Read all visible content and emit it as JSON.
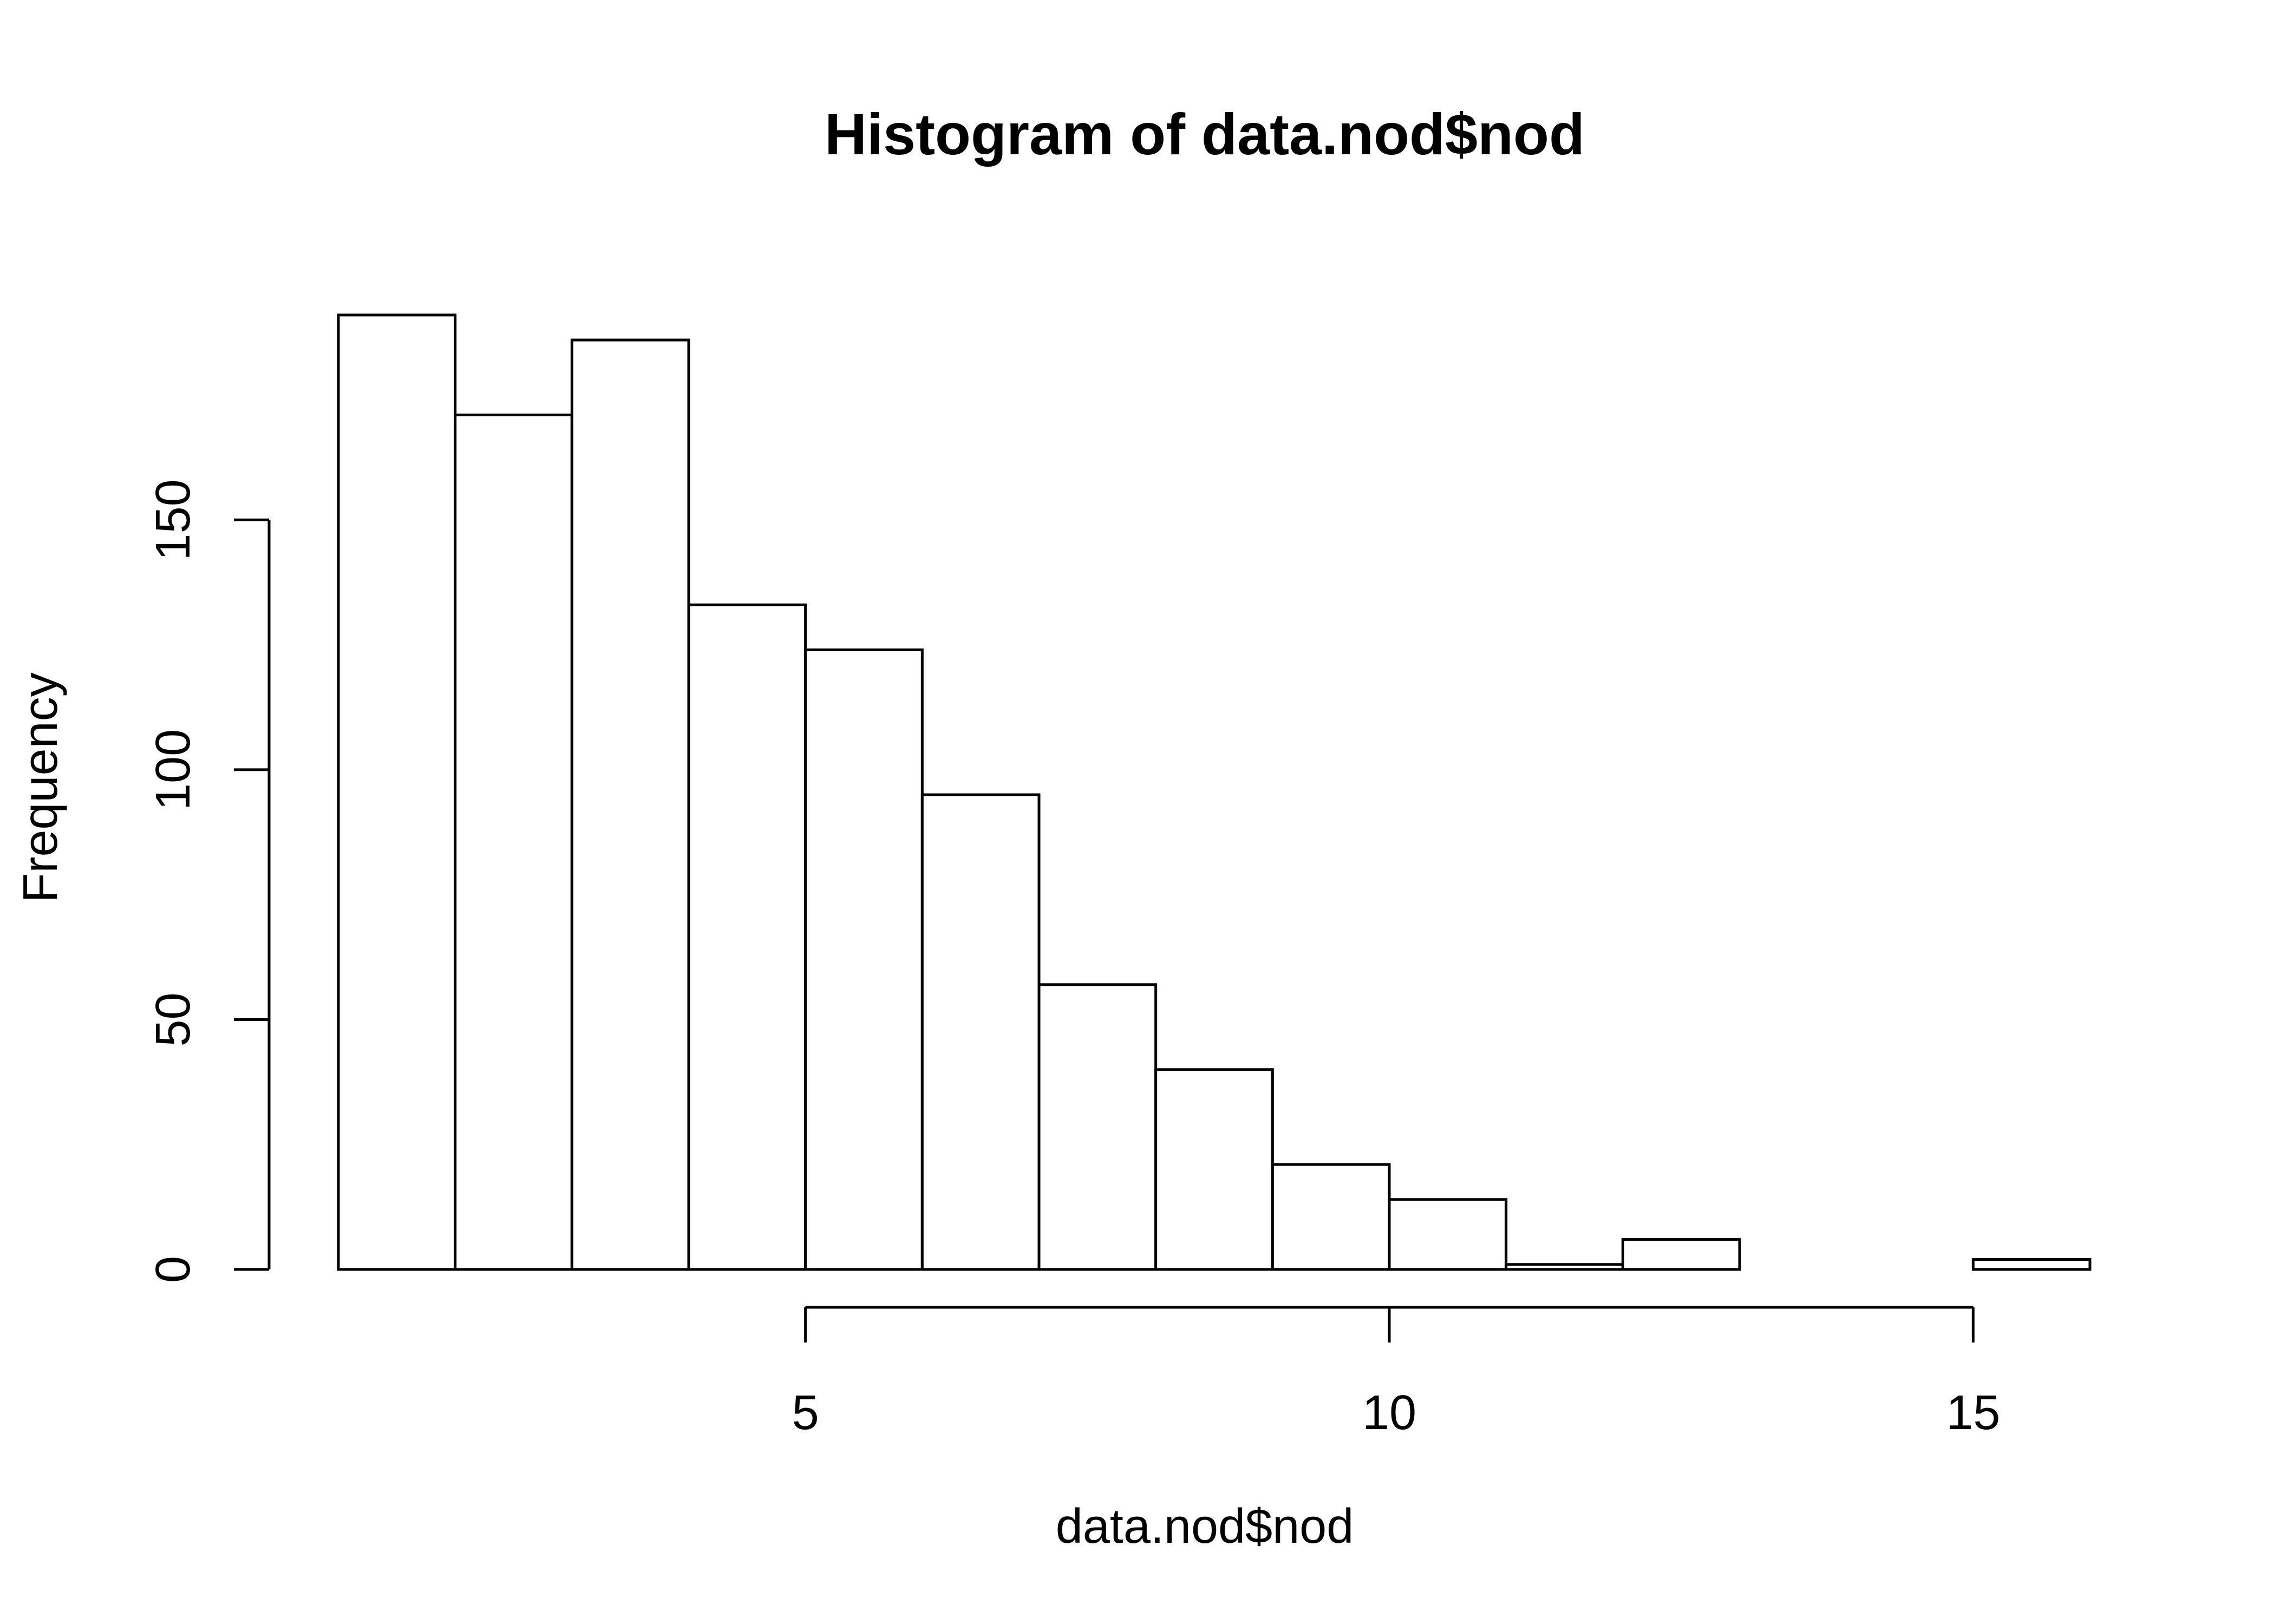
{
  "chart_data": {
    "type": "bar",
    "title": "Histogram of data.nod$nod",
    "xlabel": "data.nod$nod",
    "ylabel": "Frequency",
    "bin_edges": [
      1,
      2,
      3,
      4,
      5,
      6,
      7,
      8,
      9,
      10,
      11,
      12,
      13,
      14,
      15,
      16
    ],
    "values": [
      191,
      171,
      186,
      133,
      124,
      95,
      57,
      40,
      21,
      14,
      1,
      6,
      0,
      0,
      2
    ],
    "xlim": [
      1,
      16
    ],
    "ylim": [
      0,
      195
    ],
    "x_ticks": [
      5,
      10,
      15
    ],
    "y_ticks": [
      0,
      50,
      100,
      150
    ],
    "x_tick_labels": [
      "5",
      "10",
      "15"
    ],
    "y_tick_labels": [
      "0",
      "50",
      "100",
      "150"
    ],
    "grid": false,
    "legend": "none"
  }
}
